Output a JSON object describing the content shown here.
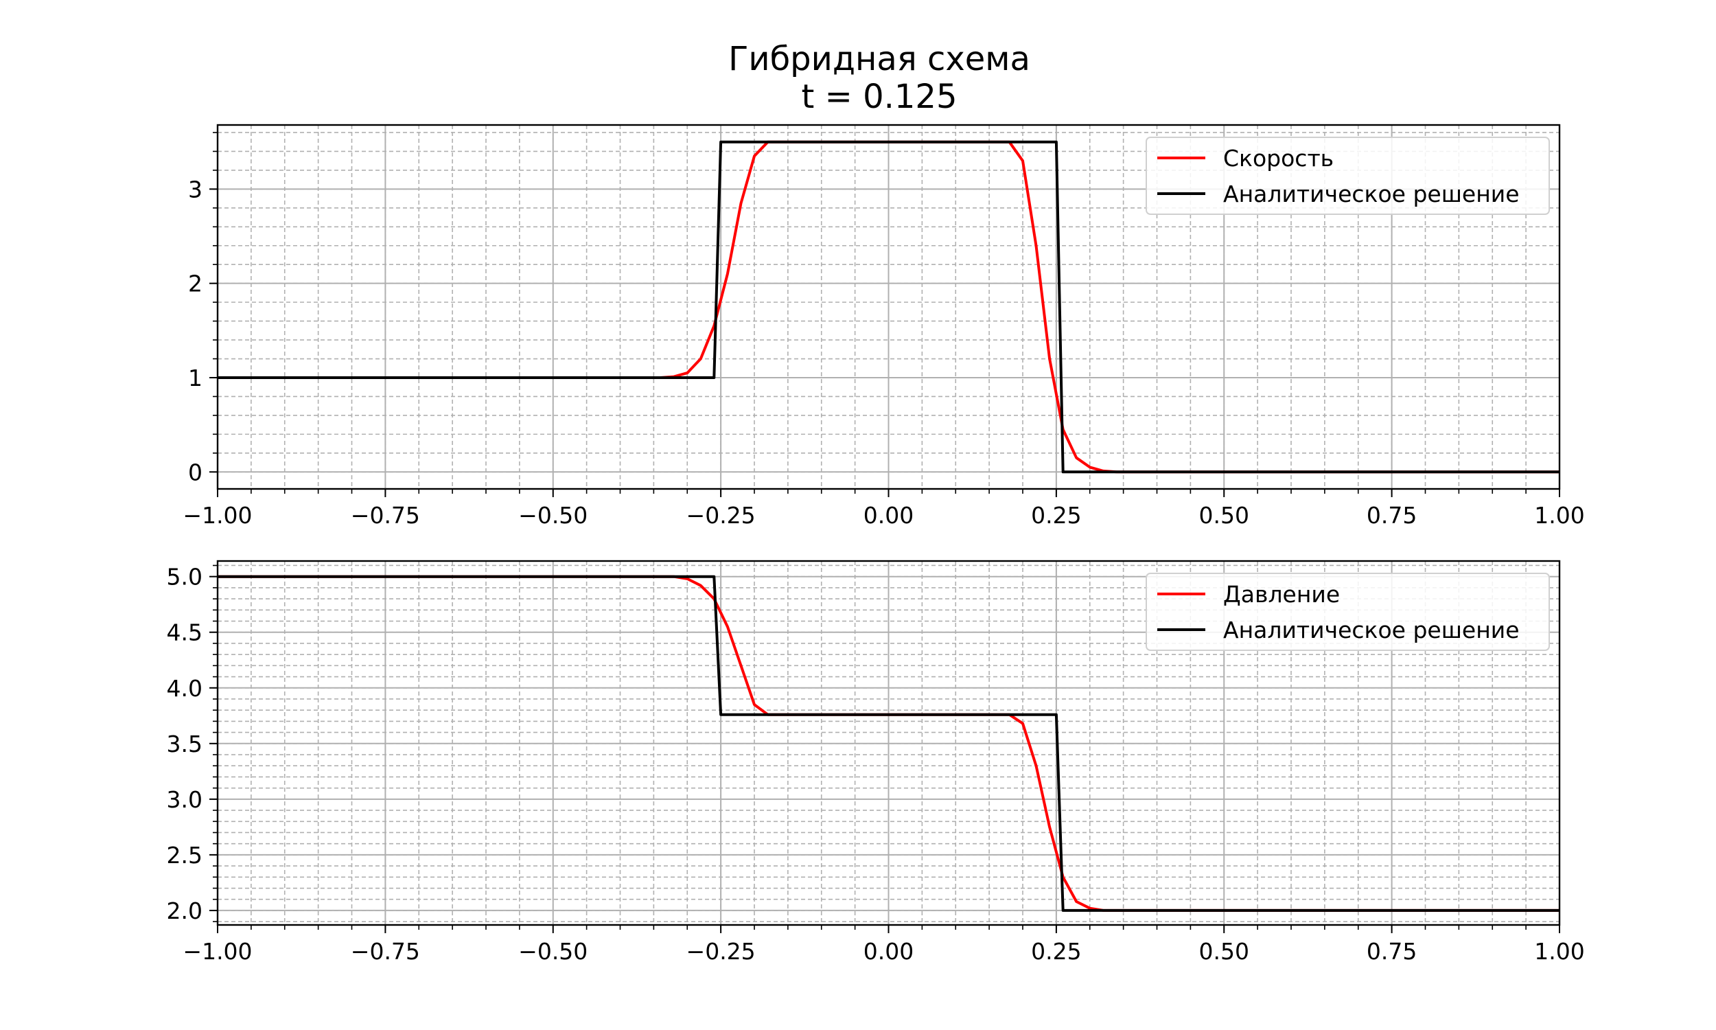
{
  "title_line1": "Гибридная схема",
  "title_line2": "t = 0.125",
  "colors": {
    "numeric": "#ff0000",
    "analytic": "#000000",
    "grid_major": "#b0b0b0",
    "grid_minor": "#b0b0b0"
  },
  "chart_data": [
    {
      "type": "line",
      "title": "",
      "xlabel": "",
      "ylabel": "",
      "xlim": [
        -1.0,
        1.0
      ],
      "ylim": [
        -0.18,
        3.68
      ],
      "x_ticks": [
        -1.0,
        -0.75,
        -0.5,
        -0.25,
        0.0,
        0.25,
        0.5,
        0.75,
        1.0
      ],
      "x_tick_labels": [
        "−1.00",
        "−0.75",
        "−0.50",
        "−0.25",
        "0.00",
        "0.25",
        "0.50",
        "0.75",
        "1.00"
      ],
      "y_ticks": [
        0,
        1,
        2,
        3
      ],
      "y_tick_labels": [
        "0",
        "1",
        "2",
        "3"
      ],
      "x_minor_step": 0.05,
      "y_minor_step": 0.2,
      "grid": true,
      "legend_position": "upper-right",
      "series": [
        {
          "name": "Скорость",
          "color": "#ff0000",
          "points": [
            [
              -1.0,
              1.0
            ],
            [
              -0.34,
              1.0
            ],
            [
              -0.32,
              1.01
            ],
            [
              -0.3,
              1.05
            ],
            [
              -0.28,
              1.2
            ],
            [
              -0.26,
              1.55
            ],
            [
              -0.24,
              2.1
            ],
            [
              -0.22,
              2.85
            ],
            [
              -0.2,
              3.35
            ],
            [
              -0.18,
              3.5
            ],
            [
              0.18,
              3.5
            ],
            [
              0.2,
              3.3
            ],
            [
              0.22,
              2.4
            ],
            [
              0.24,
              1.2
            ],
            [
              0.26,
              0.45
            ],
            [
              0.28,
              0.15
            ],
            [
              0.3,
              0.05
            ],
            [
              0.32,
              0.01
            ],
            [
              0.34,
              0.0
            ],
            [
              1.0,
              0.0
            ]
          ]
        },
        {
          "name": "Аналитическое решение",
          "color": "#000000",
          "points": [
            [
              -1.0,
              1.0
            ],
            [
              -0.26,
              1.0
            ],
            [
              -0.25,
              3.5
            ],
            [
              0.25,
              3.5
            ],
            [
              0.26,
              0.0
            ],
            [
              1.0,
              0.0
            ]
          ]
        }
      ]
    },
    {
      "type": "line",
      "title": "",
      "xlabel": "",
      "ylabel": "",
      "xlim": [
        -1.0,
        1.0
      ],
      "ylim": [
        1.87,
        5.14
      ],
      "x_ticks": [
        -1.0,
        -0.75,
        -0.5,
        -0.25,
        0.0,
        0.25,
        0.5,
        0.75,
        1.0
      ],
      "x_tick_labels": [
        "−1.00",
        "−0.75",
        "−0.50",
        "−0.25",
        "0.00",
        "0.25",
        "0.50",
        "0.75",
        "1.00"
      ],
      "y_ticks": [
        2.0,
        2.5,
        3.0,
        3.5,
        4.0,
        4.5,
        5.0
      ],
      "y_tick_labels": [
        "2.0",
        "2.5",
        "3.0",
        "3.5",
        "4.0",
        "4.5",
        "5.0"
      ],
      "x_minor_step": 0.05,
      "y_minor_step": 0.1,
      "grid": true,
      "legend_position": "upper-right",
      "series": [
        {
          "name": "Давление",
          "color": "#ff0000",
          "points": [
            [
              -1.0,
              5.0
            ],
            [
              -0.32,
              5.0
            ],
            [
              -0.3,
              4.98
            ],
            [
              -0.28,
              4.92
            ],
            [
              -0.26,
              4.8
            ],
            [
              -0.24,
              4.55
            ],
            [
              -0.22,
              4.2
            ],
            [
              -0.2,
              3.85
            ],
            [
              -0.18,
              3.76
            ],
            [
              0.18,
              3.76
            ],
            [
              0.2,
              3.68
            ],
            [
              0.22,
              3.3
            ],
            [
              0.24,
              2.75
            ],
            [
              0.26,
              2.3
            ],
            [
              0.28,
              2.08
            ],
            [
              0.3,
              2.02
            ],
            [
              0.32,
              2.0
            ],
            [
              1.0,
              2.0
            ]
          ]
        },
        {
          "name": "Аналитическое решение",
          "color": "#000000",
          "points": [
            [
              -1.0,
              5.0
            ],
            [
              -0.26,
              5.0
            ],
            [
              -0.25,
              3.76
            ],
            [
              0.25,
              3.76
            ],
            [
              0.26,
              2.0
            ],
            [
              1.0,
              2.0
            ]
          ]
        }
      ]
    }
  ]
}
